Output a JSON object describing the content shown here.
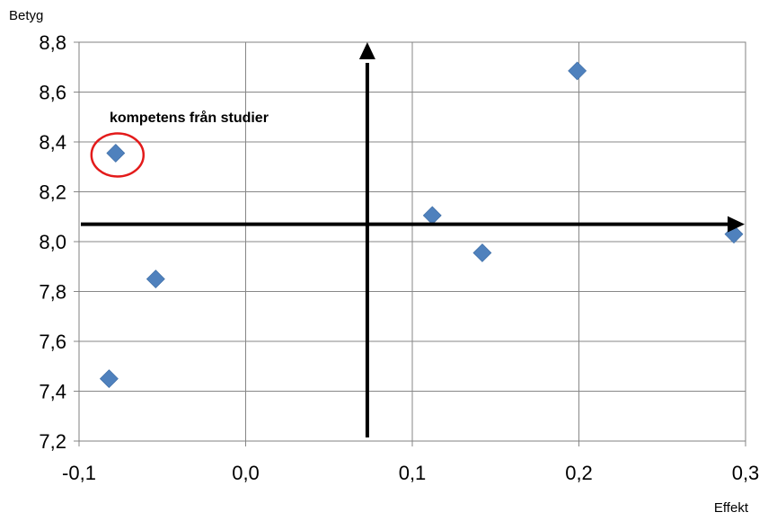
{
  "chart_data": {
    "type": "scatter",
    "title": "",
    "xlabel": "Effekt",
    "ylabel": "Betyg",
    "xlim": [
      -0.1,
      0.3
    ],
    "ylim": [
      7.2,
      8.8
    ],
    "x_ticks": [
      "-0,1",
      "0,0",
      "0,1",
      "0,2",
      "0,3"
    ],
    "y_ticks": [
      "7,2",
      "7,4",
      "7,6",
      "7,8",
      "8,0",
      "8,2",
      "8,4",
      "8,6",
      "8,8"
    ],
    "grid": true,
    "marker": "diamond",
    "point_color": "#4F81BD",
    "points": [
      {
        "x": -0.082,
        "y": 7.45
      },
      {
        "x": -0.078,
        "y": 8.355
      },
      {
        "x": -0.054,
        "y": 7.85
      },
      {
        "x": 0.112,
        "y": 8.105
      },
      {
        "x": 0.142,
        "y": 7.955
      },
      {
        "x": 0.199,
        "y": 8.685
      },
      {
        "x": 0.293,
        "y": 8.03
      }
    ],
    "reference_lines": {
      "vertical_x": 0.073,
      "horizontal_y": 8.07,
      "color": "#000000"
    },
    "annotation": {
      "text": "kompetens från studier",
      "point_x": -0.078,
      "point_y": 8.355,
      "circle_color": "#E31B1B"
    }
  }
}
